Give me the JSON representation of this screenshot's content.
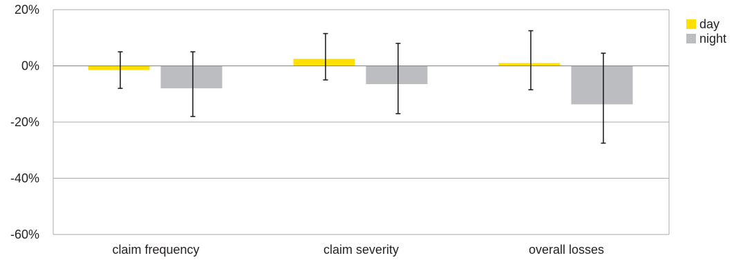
{
  "chart_data": {
    "type": "bar",
    "categories": [
      "claim frequency",
      "claim severity",
      "overall losses"
    ],
    "series": [
      {
        "name": "day",
        "color": "#ffe000",
        "values": [
          -1.5,
          2.5,
          1.0
        ],
        "error_low": [
          -8.0,
          -5.0,
          -8.5
        ],
        "error_high": [
          5.0,
          11.5,
          12.5
        ]
      },
      {
        "name": "night",
        "color": "#bcbdc0",
        "values": [
          -8.0,
          -6.5,
          -13.7
        ],
        "error_low": [
          -18.0,
          -17.0,
          -27.5
        ],
        "error_high": [
          5.0,
          8.0,
          4.5
        ]
      }
    ],
    "ylim": [
      -60,
      20
    ],
    "yticks": [
      20,
      0,
      -20,
      -40,
      -60
    ],
    "ytick_labels": [
      "20%",
      "0%",
      "-20%",
      "-40%",
      "-60%"
    ],
    "grid": true,
    "legend_position": "top-right",
    "xlabel": "",
    "ylabel": "",
    "title": ""
  }
}
